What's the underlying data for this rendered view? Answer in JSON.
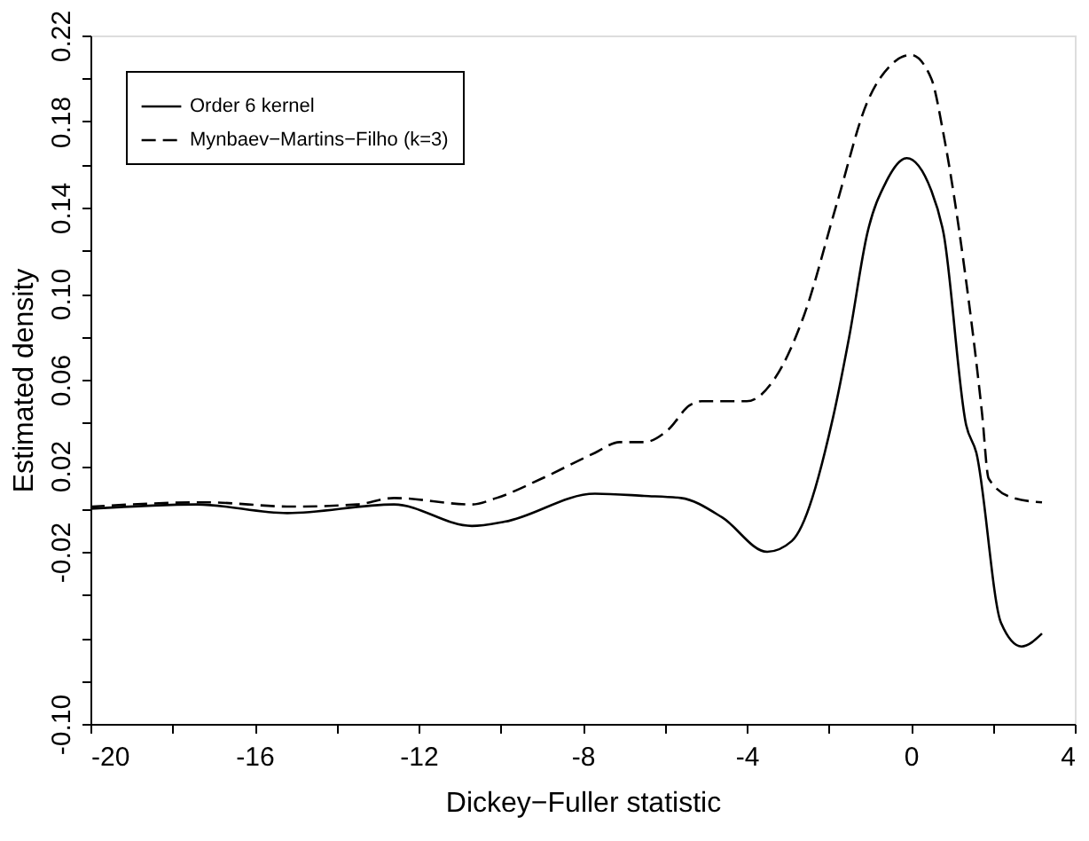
{
  "chart_data": {
    "type": "line",
    "xlabel": "Dickey−Fuller statistic",
    "ylabel": "Estimated density",
    "xlim": [
      -20,
      4
    ],
    "ylim": [
      -0.1,
      0.22
    ],
    "xticks": [
      -20,
      {
        "value": -18,
        "label": null
      },
      -16,
      {
        "value": -14,
        "label": null
      },
      -12,
      {
        "value": -10,
        "label": null
      },
      -8,
      {
        "value": -6,
        "label": null
      },
      -4,
      {
        "value": -2,
        "label": null
      },
      0,
      {
        "value": 2,
        "label": null
      },
      4
    ],
    "yticks": [
      {
        "value": -0.1,
        "label": "-0.10"
      },
      {
        "value": -0.08,
        "label": null
      },
      {
        "value": -0.06,
        "label": null
      },
      {
        "value": -0.04,
        "label": null
      },
      -0.02,
      {
        "value": 0.0,
        "label": null
      },
      0.02,
      {
        "value": 0.04,
        "label": null
      },
      0.06,
      {
        "value": 0.08,
        "label": null
      },
      {
        "value": 0.1,
        "label": "0.10"
      },
      {
        "value": 0.12,
        "label": null
      },
      0.14,
      {
        "value": 0.16,
        "label": null
      },
      0.18,
      {
        "value": 0.2,
        "label": null
      },
      0.22
    ],
    "grid": false,
    "legend": "top left",
    "marker": "none",
    "series": [
      {
        "name": "Order 6 kernel",
        "color": "#000000",
        "line_style": "solid",
        "x": [
          -20,
          -17.4,
          -15.2,
          -12.6,
          -10.7,
          -9.9,
          -7.7,
          -6.5,
          -5.6,
          -4.6,
          -3.5,
          -2.9,
          -1.9,
          -1.5,
          -1.06,
          -0.6,
          -0.1,
          0.5,
          0.8,
          1.35,
          1.6,
          2.2,
          2.7,
          3.2
        ],
        "values": [
          0.0,
          0.002,
          -0.002,
          0.002,
          -0.008,
          -0.006,
          0.007,
          0.006,
          0.005,
          -0.004,
          -0.02,
          -0.015,
          0.042,
          0.08,
          0.128,
          0.152,
          0.163,
          0.148,
          0.128,
          0.039,
          0.026,
          -0.053,
          -0.064,
          -0.058
        ]
      },
      {
        "name": "Mynbaev−Martins−Filho (k=3)",
        "color": "#000000",
        "line_style": "dashed",
        "x": [
          -20,
          -17.2,
          -15.1,
          -13.5,
          -12.6,
          -10.7,
          -10.1,
          -9.0,
          -7.7,
          -7.1,
          -6.5,
          -5.9,
          -5.4,
          -5.1,
          -4.0,
          -3.3,
          -2.6,
          -1.8,
          -1.06,
          -0.5,
          0.0,
          0.5,
          0.8,
          1.3,
          1.74,
          1.9,
          2.5,
          3.2
        ],
        "values": [
          0.001,
          0.003,
          0.001,
          0.002,
          0.005,
          0.002,
          0.005,
          0.014,
          0.026,
          0.031,
          0.031,
          0.037,
          0.048,
          0.05,
          0.05,
          0.061,
          0.09,
          0.142,
          0.189,
          0.206,
          0.211,
          0.2,
          0.174,
          0.113,
          0.044,
          0.014,
          0.005,
          0.003
        ]
      }
    ]
  }
}
